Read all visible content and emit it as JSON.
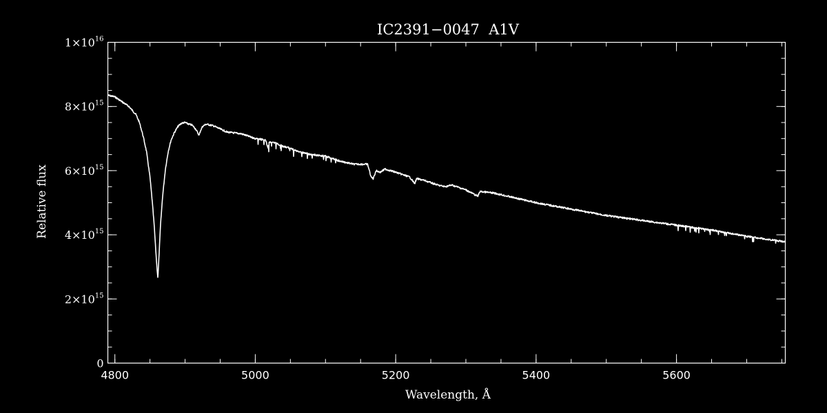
{
  "chart_data": {
    "type": "line",
    "title": "IC2391−0047  A1V",
    "xlabel": "Wavelength, Å",
    "ylabel": "Relative flux",
    "xlim": [
      4790,
      5755
    ],
    "ylim": [
      0,
      1e+16
    ],
    "grid": false,
    "legend": "none",
    "x_ticks": [
      {
        "value": 4800,
        "label": "4800"
      },
      {
        "value": 5000,
        "label": "5000"
      },
      {
        "value": 5200,
        "label": "5200"
      },
      {
        "value": 5400,
        "label": "5400"
      },
      {
        "value": 5600,
        "label": "5600"
      }
    ],
    "x_minor_step": 50,
    "y_ticks": [
      {
        "value": 0,
        "mant": "0",
        "exp": ""
      },
      {
        "value": 2000000000000000.0,
        "mant": "2×10",
        "exp": "15"
      },
      {
        "value": 4000000000000000.0,
        "mant": "4×10",
        "exp": "15"
      },
      {
        "value": 6000000000000000.0,
        "mant": "6×10",
        "exp": "15"
      },
      {
        "value": 8000000000000000.0,
        "mant": "8×10",
        "exp": "15"
      },
      {
        "value": 1e+16,
        "mant": "1×10",
        "exp": "16"
      }
    ],
    "y_minor_step": 500000000000000.0,
    "series": [
      {
        "color": "#ffffff",
        "x": [
          4790,
          4800,
          4810,
          4820,
          4830,
          4835,
          4840,
          4845,
          4850,
          4853,
          4856,
          4858,
          4860,
          4861.3,
          4863,
          4865,
          4868,
          4872,
          4876,
          4880,
          4885,
          4890,
          4895,
          4900,
          4905,
          4910,
          4915,
          4920,
          4922,
          4925,
          4930,
          4940,
          4950,
          4960,
          4980,
          5000,
          5015,
          5018,
          5020,
          5030,
          5040,
          5050,
          5060,
          5080,
          5100,
          5120,
          5140,
          5160,
          5165,
          5168,
          5172,
          5178,
          5185,
          5200,
          5220,
          5227,
          5230,
          5240,
          5260,
          5270,
          5280,
          5300,
          5317,
          5320,
          5340,
          5360,
          5380,
          5400,
          5450,
          5500,
          5550,
          5600,
          5650,
          5700,
          5755
        ],
        "y": [
          8350000000000000.0,
          8300000000000000.0,
          8150000000000000.0,
          8000000000000000.0,
          7750000000000000.0,
          7500000000000000.0,
          7100000000000000.0,
          6600000000000000.0,
          5800000000000000.0,
          5100000000000000.0,
          4300000000000000.0,
          3600000000000000.0,
          2950000000000000.0,
          2650000000000000.0,
          3400000000000000.0,
          4300000000000000.0,
          5200000000000000.0,
          6050000000000000.0,
          6600000000000000.0,
          6950000000000000.0,
          7200000000000000.0,
          7380000000000000.0,
          7480000000000000.0,
          7500000000000000.0,
          7450000000000000.0,
          7420000000000000.0,
          7300000000000000.0,
          7100000000000000.0,
          7250000000000000.0,
          7380000000000000.0,
          7450000000000000.0,
          7400000000000000.0,
          7300000000000000.0,
          7200000000000000.0,
          7150000000000000.0,
          7000000000000000.0,
          6950000000000000.0,
          6700000000000000.0,
          6900000000000000.0,
          6850000000000000.0,
          6750000000000000.0,
          6700000000000000.0,
          6600000000000000.0,
          6500000000000000.0,
          6450000000000000.0,
          6300000000000000.0,
          6200000000000000.0,
          6200000000000000.0,
          5800000000000000.0,
          5750000000000000.0,
          6000000000000000.0,
          5950000000000000.0,
          6050000000000000.0,
          5950000000000000.0,
          5800000000000000.0,
          5600000000000000.0,
          5750000000000000.0,
          5700000000000000.0,
          5550000000000000.0,
          5500000000000000.0,
          5550000000000000.0,
          5400000000000000.0,
          5200000000000000.0,
          5350000000000000.0,
          5300000000000000.0,
          5200000000000000.0,
          5100000000000000.0,
          5000000000000000.0,
          4800000000000000.0,
          4600000000000000.0,
          4450000000000000.0,
          4300000000000000.0,
          4150000000000000.0,
          3950000000000000.0,
          3780000000000000.0
        ]
      }
    ]
  }
}
